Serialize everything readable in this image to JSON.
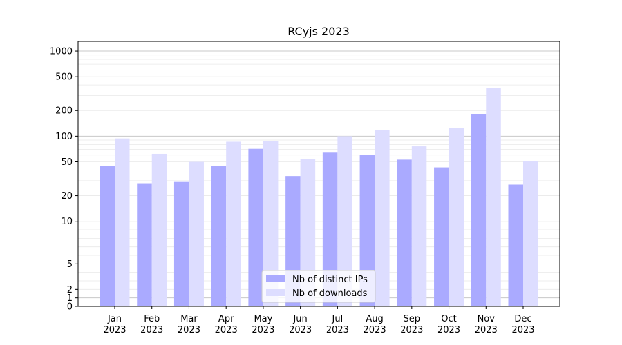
{
  "chart_data": {
    "type": "bar",
    "title": "RCyjs 2023",
    "xlabel": "",
    "ylabel": "",
    "yscale": "symlog",
    "ylim": [
      0,
      1300
    ],
    "yticks": [
      0,
      1,
      2,
      5,
      10,
      20,
      50,
      100,
      200,
      500,
      1000
    ],
    "grid": true,
    "legend_position": "lower-center",
    "categories": [
      "Jan\n2023",
      "Feb\n2023",
      "Mar\n2023",
      "Apr\n2023",
      "May\n2023",
      "Jun\n2023",
      "Jul\n2023",
      "Aug\n2023",
      "Sep\n2023",
      "Oct\n2023",
      "Nov\n2023",
      "Dec\n2023"
    ],
    "series": [
      {
        "name": "Nb of distinct IPs",
        "color": "#aaaaff",
        "values": [
          45,
          28,
          29,
          45,
          71,
          34,
          64,
          60,
          53,
          43,
          183,
          27
        ]
      },
      {
        "name": "Nb of downloads",
        "color": "#ddddff",
        "values": [
          94,
          62,
          50,
          86,
          88,
          54,
          100,
          119,
          76,
          124,
          372,
          51
        ]
      }
    ]
  }
}
